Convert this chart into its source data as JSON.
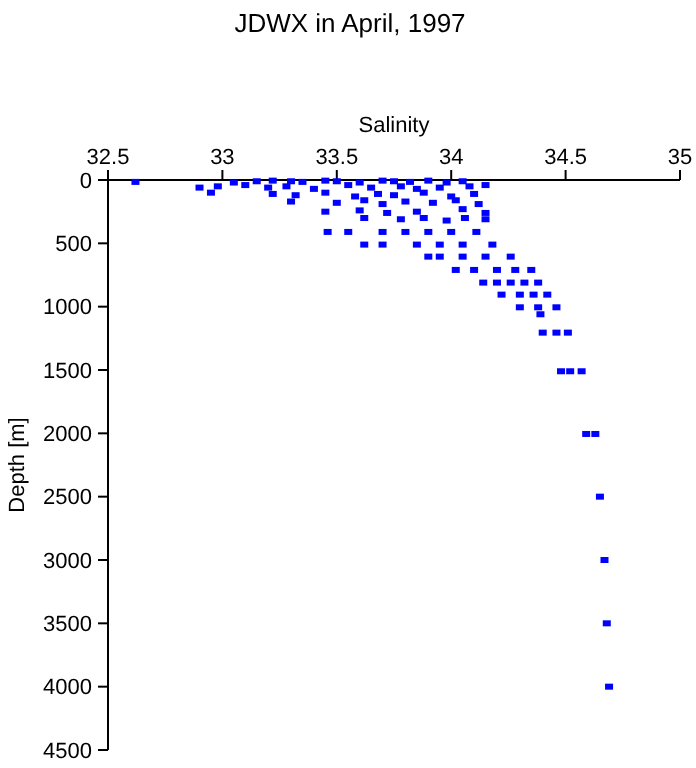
{
  "chart_data": {
    "type": "scatter",
    "title": "JDWX in April, 1997",
    "xlabel": "Salinity",
    "ylabel": "Depth [m]",
    "xlim": [
      32.5,
      35
    ],
    "xticks": [
      32.5,
      33,
      33.5,
      34,
      34.5,
      35
    ],
    "ylim": [
      4500,
      0
    ],
    "yticks": [
      0,
      500,
      1000,
      1500,
      2000,
      2500,
      3000,
      3500,
      4000,
      4500
    ],
    "marker": "square",
    "series": [
      {
        "color": "#0000ff",
        "x": [
          32.62,
          33.05,
          33.15,
          33.22,
          33.3,
          33.35,
          33.45,
          33.5,
          33.6,
          33.7,
          33.75,
          33.82,
          33.9,
          33.98,
          34.05,
          32.9,
          32.98,
          33.1,
          33.2,
          33.28,
          33.4,
          33.55,
          33.65,
          33.78,
          33.85,
          33.95,
          34.08,
          34.15,
          32.95,
          33.22,
          33.32,
          33.45,
          33.58,
          33.68,
          33.75,
          33.88,
          34.0,
          34.1,
          33.3,
          33.5,
          33.62,
          33.7,
          33.8,
          33.92,
          34.02,
          34.12,
          33.45,
          33.6,
          33.72,
          33.85,
          34.05,
          33.62,
          33.78,
          33.88,
          33.98,
          34.06,
          34.15,
          34.15,
          33.46,
          33.55,
          33.7,
          33.8,
          33.9,
          34.0,
          34.11,
          33.62,
          33.7,
          33.85,
          33.95,
          34.05,
          34.18,
          33.9,
          33.95,
          34.05,
          34.15,
          34.26,
          34.02,
          34.1,
          34.2,
          34.28,
          34.35,
          34.14,
          34.2,
          34.26,
          34.32,
          34.38,
          34.22,
          34.3,
          34.36,
          34.42,
          34.3,
          34.38,
          34.46,
          34.39,
          34.4,
          34.46,
          34.51,
          34.48,
          34.52,
          34.57,
          34.59,
          34.63,
          34.65,
          34.67,
          34.68,
          34.69
        ],
        "values": [
          15,
          20,
          10,
          5,
          10,
          15,
          5,
          10,
          20,
          5,
          10,
          15,
          5,
          20,
          10,
          60,
          50,
          40,
          60,
          50,
          70,
          40,
          60,
          50,
          70,
          60,
          50,
          40,
          100,
          110,
          120,
          100,
          130,
          110,
          120,
          100,
          130,
          110,
          170,
          180,
          160,
          190,
          170,
          180,
          160,
          190,
          250,
          240,
          260,
          250,
          230,
          300,
          310,
          300,
          320,
          300,
          310,
          260,
          410,
          410,
          410,
          410,
          410,
          410,
          410,
          510,
          510,
          510,
          510,
          510,
          510,
          605,
          605,
          605,
          605,
          605,
          710,
          710,
          710,
          710,
          710,
          810,
          810,
          810,
          810,
          810,
          905,
          905,
          905,
          905,
          1005,
          1005,
          1005,
          1060,
          1205,
          1205,
          1205,
          1510,
          1510,
          1510,
          2005,
          2005,
          2500,
          3000,
          3500,
          4000
        ]
      }
    ]
  }
}
